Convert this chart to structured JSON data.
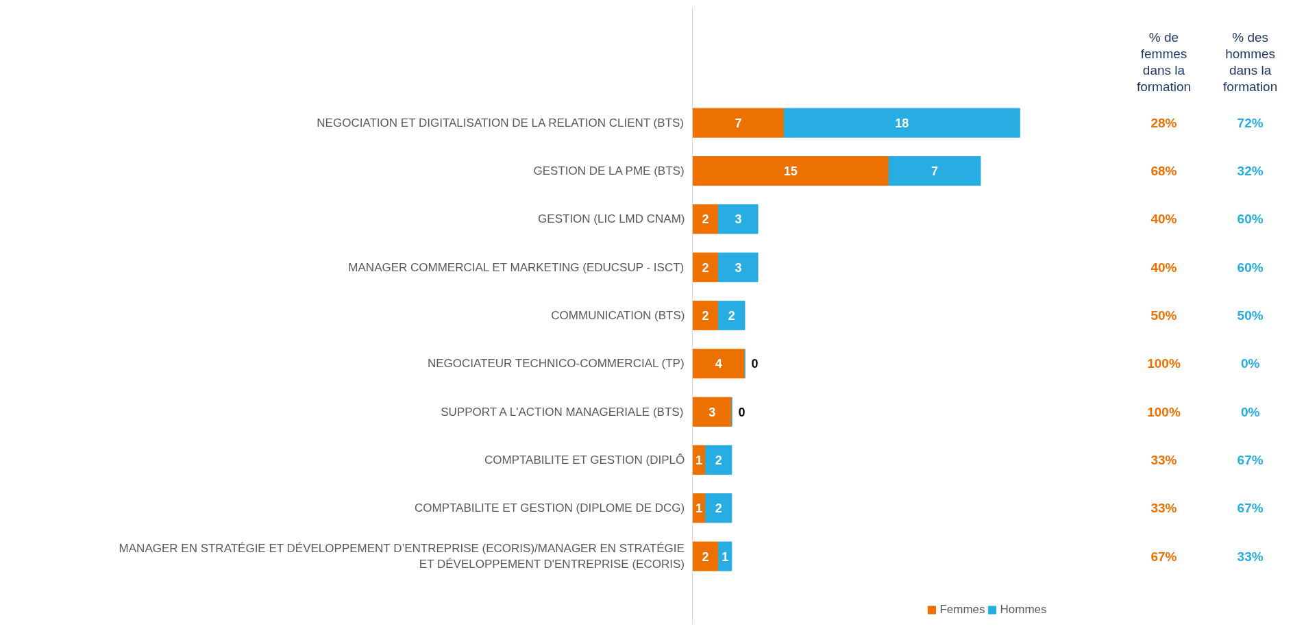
{
  "chart_data": {
    "type": "bar",
    "orientation": "horizontal",
    "stacked": true,
    "data_labels": true,
    "legend": "bottom",
    "grid": false,
    "categories": [
      "NEGOCIATION ET DIGITALISATION DE LA RELATION CLIENT (BTS)",
      "GESTION DE LA PME (BTS)",
      "GESTION (LIC LMD CNAM)",
      "MANAGER COMMERCIAL ET MARKETING (EDUCSUP - ISCT)",
      "COMMUNICATION (BTS)",
      "NEGOCIATEUR TECHNICO-COMMERCIAL (TP)",
      "SUPPORT A L'ACTION MANAGERIALE (BTS)",
      "COMPTABILITE ET GESTION (DIPLÔ",
      "COMPTABILITE ET GESTION (DIPLOME DE DCG)",
      "MANAGER EN STRATÉGIE ET DÉVELOPPEMENT D’ENTREPRISE (ECORIS)/MANAGER EN STRATÉGIE ET DÉVELOPPEMENT D'ENTREPRISE (ECORIS)"
    ],
    "series": [
      {
        "name": "Femmes",
        "color": "#ed7100",
        "values": [
          7,
          15,
          2,
          2,
          2,
          4,
          3,
          1,
          1,
          2
        ]
      },
      {
        "name": "Hommes",
        "color": "#27ade1",
        "values": [
          18,
          7,
          3,
          3,
          2,
          0,
          0,
          2,
          2,
          1
        ]
      }
    ],
    "annotations": [
      "% de femmes dans la formation",
      "% des hommes dans la formation",
      "28%",
      "72%",
      "68%",
      "32%",
      "40%",
      "60%",
      "40%",
      "60%",
      "50%",
      "50%",
      "100%",
      "0%",
      "100%",
      "0%",
      "33%",
      "67%",
      "33%",
      "67%",
      "67%",
      "33%"
    ]
  }
}
